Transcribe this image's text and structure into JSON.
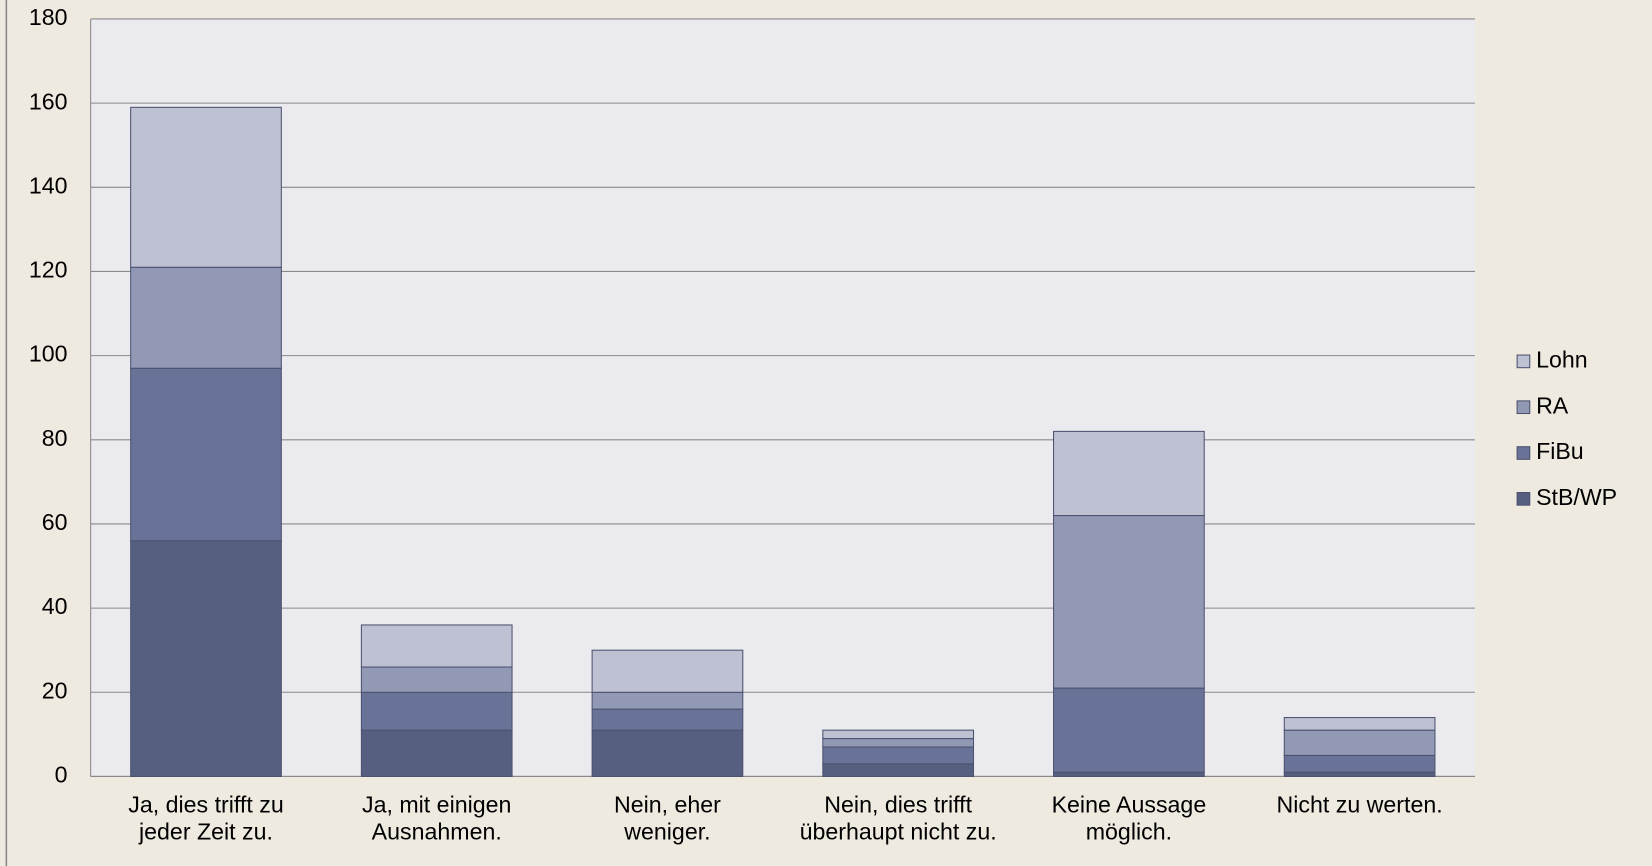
{
  "chart_data": {
    "type": "bar",
    "stacked": true,
    "categories": [
      "Ja, dies trifft zu\njeder Zeit zu.",
      "Ja, mit einigen\nAusnahmen.",
      "Nein, eher\nweniger.",
      "Nein, dies trifft\nüberhaupt nicht zu.",
      "Keine Aussage\nmöglich.",
      "Nicht zu werten."
    ],
    "series": [
      {
        "name": "StB/WP",
        "color": "#575f80",
        "values": [
          56,
          11,
          11,
          3,
          1,
          1
        ]
      },
      {
        "name": "FiBu",
        "color": "#687397",
        "values": [
          41,
          9,
          5,
          4,
          20,
          4
        ]
      },
      {
        "name": "RA",
        "color": "#9299b5",
        "values": [
          24,
          6,
          4,
          2,
          41,
          6
        ]
      },
      {
        "name": "Lohn",
        "color": "#bec1d2",
        "values": [
          38,
          10,
          10,
          2,
          20,
          3
        ]
      }
    ],
    "ylim": [
      0,
      180
    ],
    "yticks": [
      0,
      20,
      40,
      60,
      80,
      100,
      120,
      140,
      160,
      180
    ],
    "grid": true,
    "legend": "right"
  }
}
